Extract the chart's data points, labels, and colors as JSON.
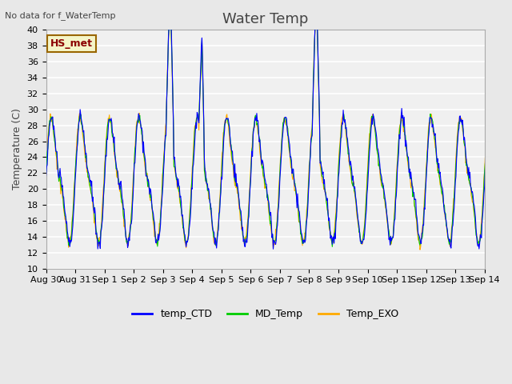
{
  "title": "Water Temp",
  "ylabel": "Temperature (C)",
  "top_left_text": "No data for f_WaterTemp",
  "annotation_text": "HS_met",
  "ylim": [
    10,
    40
  ],
  "yticks": [
    10,
    12,
    14,
    16,
    18,
    20,
    22,
    24,
    26,
    28,
    30,
    32,
    34,
    36,
    38,
    40
  ],
  "xtick_labels": [
    "Aug 30",
    "Aug 31",
    "Sep 1",
    "Sep 2",
    "Sep 3",
    "Sep 4",
    "Sep 5",
    "Sep 6",
    "Sep 7",
    "Sep 8",
    "Sep 9",
    "Sep 10",
    "Sep 11",
    "Sep 12",
    "Sep 13",
    "Sep 14"
  ],
  "legend_entries": [
    "temp_CTD",
    "MD_Temp",
    "Temp_EXO"
  ],
  "legend_colors": [
    "#0000ff",
    "#00cc00",
    "#ffaa00"
  ],
  "background_color": "#e8e8e8",
  "plot_bg_color": "#f0f0f0",
  "title_fontsize": 13,
  "axis_fontsize": 9,
  "tick_fontsize": 8,
  "n_days": 16,
  "points_per_day": 48
}
